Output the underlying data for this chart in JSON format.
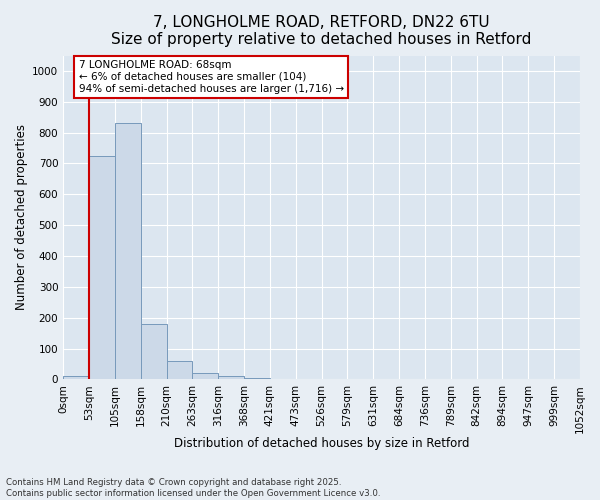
{
  "title_line1": "7, LONGHOLME ROAD, RETFORD, DN22 6TU",
  "title_line2": "Size of property relative to detached houses in Retford",
  "xlabel": "Distribution of detached houses by size in Retford",
  "ylabel": "Number of detached properties",
  "bar_values": [
    10,
    725,
    830,
    180,
    60,
    20,
    10,
    5,
    0,
    0,
    0,
    0,
    0,
    0,
    0,
    0,
    0,
    0,
    0,
    0
  ],
  "bar_labels": [
    "0sqm",
    "53sqm",
    "105sqm",
    "158sqm",
    "210sqm",
    "263sqm",
    "316sqm",
    "368sqm",
    "421sqm",
    "473sqm",
    "526sqm",
    "579sqm",
    "631sqm",
    "684sqm",
    "736sqm",
    "789sqm",
    "842sqm",
    "894sqm",
    "947sqm",
    "999sqm",
    "1052sqm"
  ],
  "bar_color": "#ccd9e8",
  "bar_edge_color": "#7799bb",
  "annotation_text": "7 LONGHOLME ROAD: 68sqm\n← 6% of detached houses are smaller (104)\n94% of semi-detached houses are larger (1,716) →",
  "annotation_box_color": "#ffffff",
  "annotation_border_color": "#cc0000",
  "red_line_bin": 1,
  "ylim": [
    0,
    1050
  ],
  "yticks": [
    0,
    100,
    200,
    300,
    400,
    500,
    600,
    700,
    800,
    900,
    1000
  ],
  "footnote": "Contains HM Land Registry data © Crown copyright and database right 2025.\nContains public sector information licensed under the Open Government Licence v3.0.",
  "background_color": "#e8eef4",
  "plot_background_color": "#dce6f0",
  "grid_color": "#ffffff",
  "title_fontsize": 11,
  "axis_fontsize": 8.5,
  "tick_fontsize": 7.5,
  "annot_fontsize": 7.5
}
